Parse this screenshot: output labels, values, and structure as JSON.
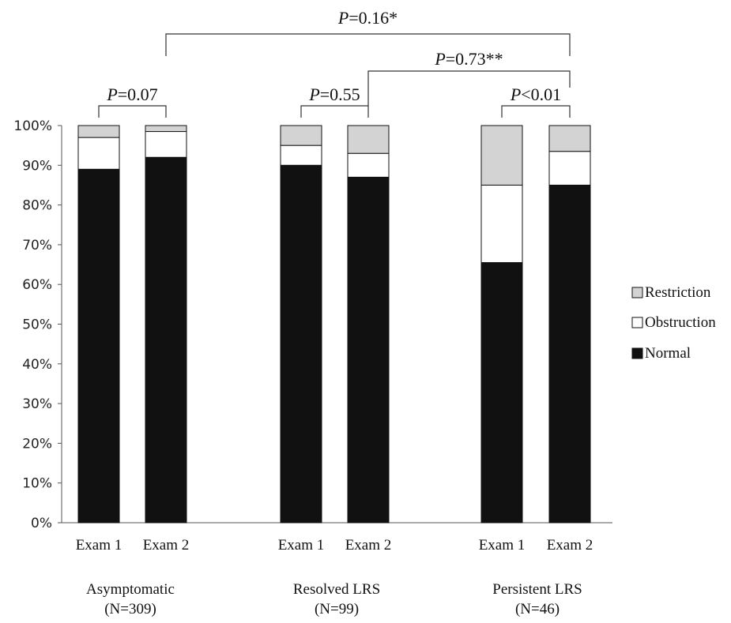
{
  "chart_data": {
    "type": "bar",
    "stacked": true,
    "ylim": [
      0,
      100
    ],
    "yticks": [
      "0%",
      "10%",
      "20%",
      "30%",
      "40%",
      "50%",
      "60%",
      "70%",
      "80%",
      "90%",
      "100%"
    ],
    "categories": [
      "Exam 1",
      "Exam 2",
      "Exam 1",
      "Exam 2",
      "Exam 1",
      "Exam 2"
    ],
    "groups": [
      {
        "name": "Asymptomatic",
        "n": "(N=309)"
      },
      {
        "name": "Resolved LRS",
        "n": "(N=99)"
      },
      {
        "name": "Persistent LRS",
        "n": "(N=46)"
      }
    ],
    "series": [
      {
        "name": "Normal",
        "color": "#111111",
        "values": [
          89,
          92,
          90,
          87,
          65.5,
          85
        ]
      },
      {
        "name": "Obstruction",
        "color": "#ffffff",
        "values": [
          8,
          6.5,
          5,
          6,
          19.5,
          8.5
        ]
      },
      {
        "name": "Restriction",
        "color": "#d3d3d3",
        "values": [
          3,
          1.5,
          5,
          7,
          15,
          6.5
        ]
      }
    ],
    "legend_order": [
      "Restriction",
      "Obstruction",
      "Normal"
    ],
    "legend_position": "right",
    "annotations": [
      {
        "italic": "P",
        "text": "=0.07",
        "from_bar": 0,
        "to_bar": 1
      },
      {
        "italic": "P",
        "text": "=0.55",
        "from_bar": 2,
        "to_bar": 3
      },
      {
        "italic": "P",
        "text": "<0.01",
        "from_bar": 4,
        "to_bar": 5
      },
      {
        "italic": "P",
        "text": "=0.73**",
        "from_bar": 3,
        "to_bar": 5
      },
      {
        "italic": "P",
        "text": "=0.16*",
        "from_bar": 1,
        "to_bar": 5
      }
    ]
  }
}
